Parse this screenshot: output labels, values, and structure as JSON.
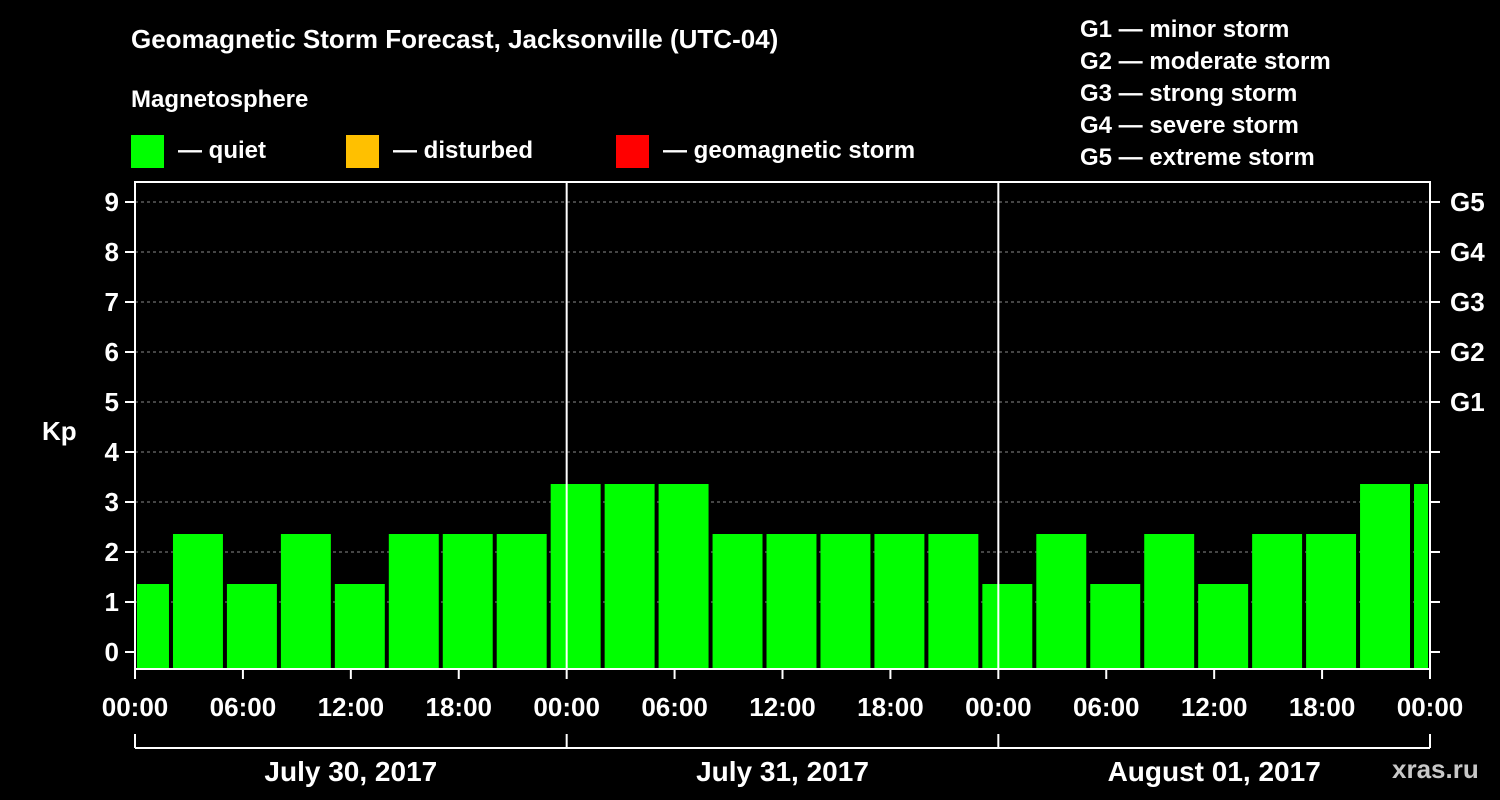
{
  "header": {
    "title": "Geomagnetic Storm Forecast, Jacksonville (UTC-04)",
    "subtitle": "Magnetosphere"
  },
  "legend": [
    {
      "color": "#00ff00",
      "label": "— quiet"
    },
    {
      "color": "#ffc000",
      "label": "— disturbed"
    },
    {
      "color": "#ff0000",
      "label": "— geomagnetic storm"
    }
  ],
  "storm_levels": [
    {
      "label": "G1 — minor storm"
    },
    {
      "label": "G2 — moderate storm"
    },
    {
      "label": "G3 — strong storm"
    },
    {
      "label": "G4 — severe storm"
    },
    {
      "label": "G5 — extreme storm"
    }
  ],
  "watermark": "xras.ru",
  "chart_data": {
    "type": "bar",
    "title": "Geomagnetic Storm Forecast, Jacksonville (UTC-04)",
    "ylabel": "Kp",
    "ylim": [
      0,
      9
    ],
    "yticks": [
      0,
      1,
      2,
      3,
      4,
      5,
      6,
      7,
      8,
      9
    ],
    "right_axis_labels": [
      {
        "kp": 5,
        "label": "G1"
      },
      {
        "kp": 6,
        "label": "G2"
      },
      {
        "kp": 7,
        "label": "G3"
      },
      {
        "kp": 8,
        "label": "G4"
      },
      {
        "kp": 9,
        "label": "G5"
      }
    ],
    "grid": true,
    "bar_color": "#00ff00",
    "x_range_hours": [
      0,
      72
    ],
    "x_tick_hours": [
      0,
      6,
      12,
      18,
      24,
      30,
      36,
      42,
      48,
      54,
      60,
      66,
      72
    ],
    "x_tick_labels": [
      "00:00",
      "06:00",
      "12:00",
      "18:00",
      "00:00",
      "06:00",
      "12:00",
      "18:00",
      "00:00",
      "06:00",
      "12:00",
      "18:00",
      "00:00"
    ],
    "day_separators_hours": [
      24,
      48
    ],
    "days": [
      {
        "label": "July 30, 2017",
        "start_hour": 0,
        "end_hour": 24
      },
      {
        "label": "July 31, 2017",
        "start_hour": 24,
        "end_hour": 48
      },
      {
        "label": "August 01, 2017",
        "start_hour": 48,
        "end_hour": 72
      }
    ],
    "bars": [
      {
        "start_hour": 0,
        "end_hour": 2,
        "kp": 1
      },
      {
        "start_hour": 2,
        "end_hour": 5,
        "kp": 2
      },
      {
        "start_hour": 5,
        "end_hour": 8,
        "kp": 1
      },
      {
        "start_hour": 8,
        "end_hour": 11,
        "kp": 2
      },
      {
        "start_hour": 11,
        "end_hour": 14,
        "kp": 1
      },
      {
        "start_hour": 14,
        "end_hour": 17,
        "kp": 2
      },
      {
        "start_hour": 17,
        "end_hour": 20,
        "kp": 2
      },
      {
        "start_hour": 20,
        "end_hour": 23,
        "kp": 2
      },
      {
        "start_hour": 23,
        "end_hour": 26,
        "kp": 3
      },
      {
        "start_hour": 26,
        "end_hour": 29,
        "kp": 3
      },
      {
        "start_hour": 29,
        "end_hour": 32,
        "kp": 3
      },
      {
        "start_hour": 32,
        "end_hour": 35,
        "kp": 2
      },
      {
        "start_hour": 35,
        "end_hour": 38,
        "kp": 2
      },
      {
        "start_hour": 38,
        "end_hour": 41,
        "kp": 2
      },
      {
        "start_hour": 41,
        "end_hour": 44,
        "kp": 2
      },
      {
        "start_hour": 44,
        "end_hour": 47,
        "kp": 2
      },
      {
        "start_hour": 47,
        "end_hour": 50,
        "kp": 1
      },
      {
        "start_hour": 50,
        "end_hour": 53,
        "kp": 2
      },
      {
        "start_hour": 53,
        "end_hour": 56,
        "kp": 1
      },
      {
        "start_hour": 56,
        "end_hour": 59,
        "kp": 2
      },
      {
        "start_hour": 59,
        "end_hour": 62,
        "kp": 1
      },
      {
        "start_hour": 62,
        "end_hour": 65,
        "kp": 2
      },
      {
        "start_hour": 65,
        "end_hour": 68,
        "kp": 2
      },
      {
        "start_hour": 68,
        "end_hour": 71,
        "kp": 3
      },
      {
        "start_hour": 71,
        "end_hour": 72,
        "kp": 3
      }
    ]
  }
}
